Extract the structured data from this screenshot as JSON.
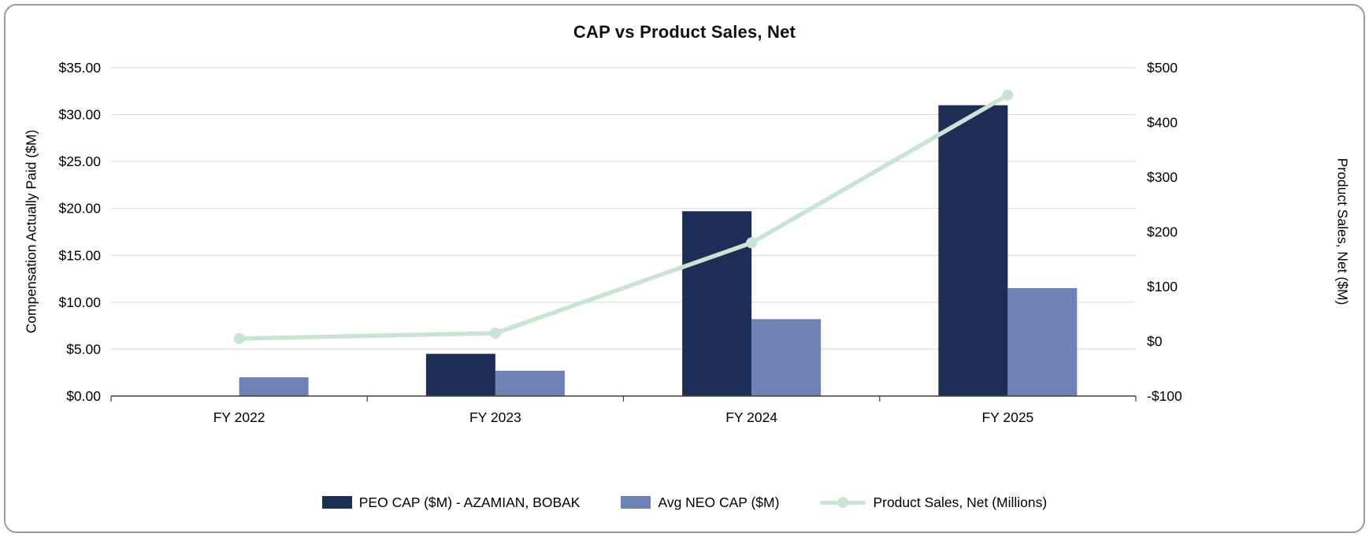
{
  "chart_data": {
    "type": "bar",
    "subtype": "bar-line-combo",
    "title": "CAP vs Product Sales, Net",
    "categories": [
      "FY 2022",
      "FY 2023",
      "FY 2024",
      "FY 2025"
    ],
    "series": [
      {
        "name": "PEO CAP ($M) - AZAMIAN, BOBAK",
        "type": "bar",
        "axis": "left",
        "color": "#1e2d55",
        "values": [
          0,
          4.5,
          19.7,
          31.0
        ]
      },
      {
        "name": "Avg NEO CAP ($M)",
        "type": "bar",
        "axis": "left",
        "color": "#6e82b8",
        "values": [
          2.0,
          2.7,
          8.2,
          11.5
        ]
      },
      {
        "name": "Product Sales, Net (Millions)",
        "type": "line",
        "axis": "right",
        "color": "#c9e4d3",
        "values": [
          5,
          15,
          180,
          450
        ]
      }
    ],
    "left_axis": {
      "title": "Compensation Actually Paid ($M)",
      "min": 0,
      "max": 35,
      "step": 5,
      "tick_labels": [
        "$0.00",
        "$5.00",
        "$10.00",
        "$15.00",
        "$20.00",
        "$25.00",
        "$30.00",
        "$35.00"
      ]
    },
    "right_axis": {
      "title": "Product Sales, Net ($M)",
      "min": -100,
      "max": 500,
      "step": 100,
      "tick_labels": [
        "-$100",
        "$0",
        "$100",
        "$200",
        "$300",
        "$400",
        "$500"
      ]
    },
    "legend_position": "bottom",
    "grid": "horizontal"
  },
  "colors": {
    "grid": "#d9d9d9",
    "axis_line": "#404040",
    "frame_border": "#9a9a9a",
    "background": "#ffffff",
    "text": "#000000"
  }
}
